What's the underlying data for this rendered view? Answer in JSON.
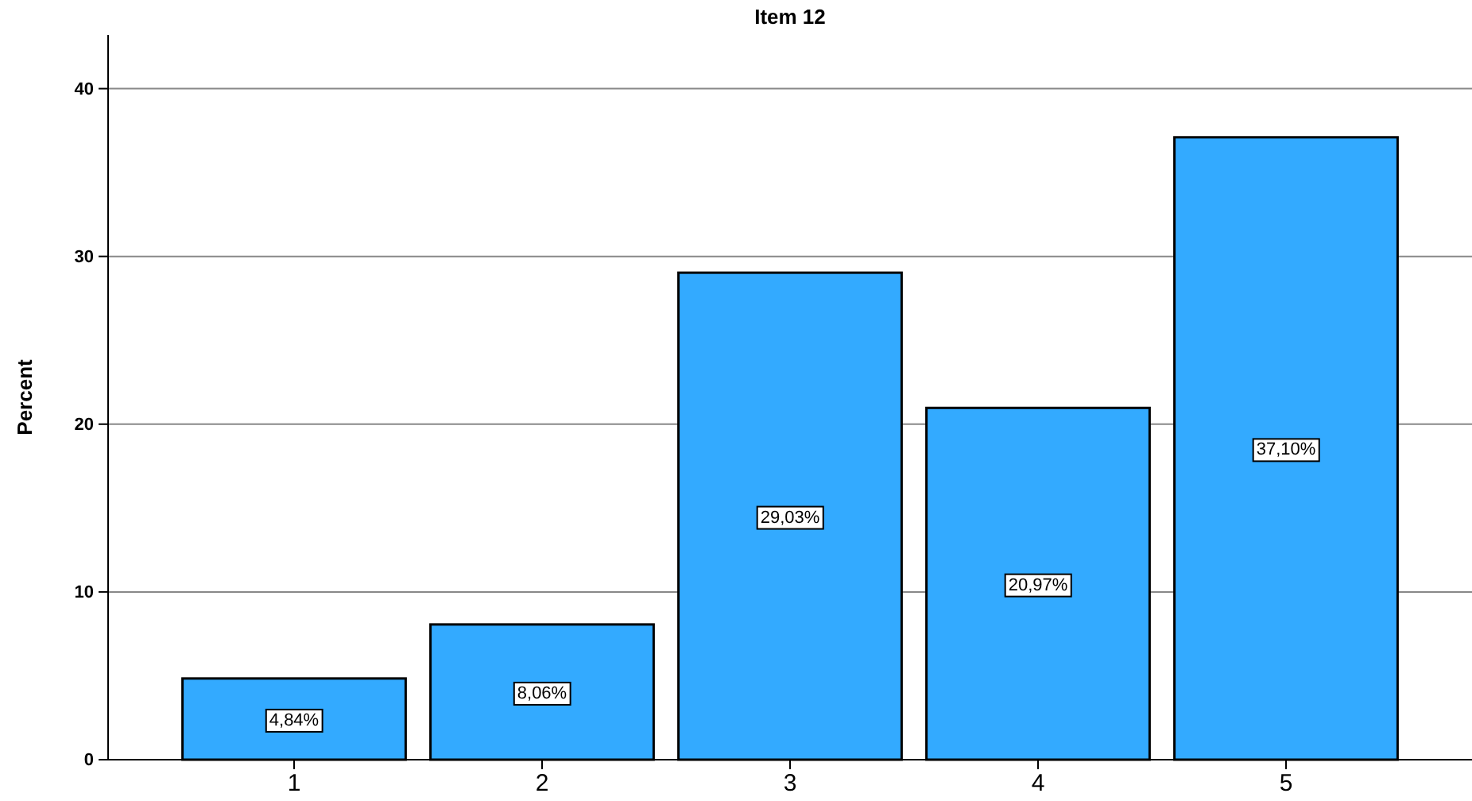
{
  "chart_data": {
    "type": "bar",
    "title": "Item 12",
    "ylabel": "Percent",
    "categories": [
      "1",
      "2",
      "3",
      "4",
      "5"
    ],
    "values": [
      4.84,
      8.06,
      29.03,
      20.97,
      37.1
    ],
    "value_labels": [
      "4,84%",
      "8,06%",
      "29,03%",
      "20,97%",
      "37,10%"
    ],
    "color": "#33aaff",
    "ylim": [
      0,
      43.2
    ],
    "yticks": [
      0,
      10,
      20,
      30,
      40
    ],
    "grid": "y"
  }
}
